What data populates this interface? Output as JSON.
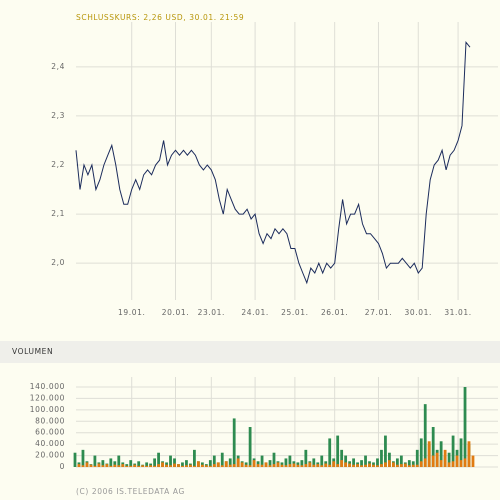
{
  "chart_data": [
    {
      "type": "line",
      "title": "SCHLUSSKURS: 2,26 USD, 30.01. 21:59",
      "color": "#1c2c5c",
      "values": [
        2.23,
        2.15,
        2.2,
        2.18,
        2.2,
        2.15,
        2.17,
        2.2,
        2.22,
        2.24,
        2.2,
        2.15,
        2.12,
        2.12,
        2.15,
        2.17,
        2.15,
        2.18,
        2.19,
        2.18,
        2.2,
        2.21,
        2.25,
        2.2,
        2.22,
        2.23,
        2.22,
        2.23,
        2.22,
        2.23,
        2.22,
        2.2,
        2.19,
        2.2,
        2.19,
        2.17,
        2.13,
        2.1,
        2.15,
        2.13,
        2.11,
        2.1,
        2.1,
        2.11,
        2.09,
        2.1,
        2.06,
        2.04,
        2.06,
        2.05,
        2.07,
        2.06,
        2.07,
        2.06,
        2.03,
        2.03,
        2.0,
        1.98,
        1.96,
        1.99,
        1.98,
        2.0,
        1.98,
        2.0,
        1.99,
        2.0,
        2.07,
        2.13,
        2.08,
        2.1,
        2.1,
        2.12,
        2.08,
        2.06,
        2.06,
        2.05,
        2.04,
        2.02,
        1.99,
        2.0,
        2.0,
        2.0,
        2.01,
        2.0,
        1.99,
        2.0,
        1.98,
        1.99,
        2.1,
        2.17,
        2.2,
        2.21,
        2.23,
        2.19,
        2.22,
        2.23,
        2.25,
        2.28,
        2.45,
        2.44
      ],
      "xlim": [
        0,
        99
      ],
      "xticks": [
        {
          "value": 14,
          "label": "19.01."
        },
        {
          "value": 25,
          "label": "20.01."
        },
        {
          "value": 34,
          "label": "23.01."
        },
        {
          "value": 45,
          "label": "24.01."
        },
        {
          "value": 55,
          "label": "25.01."
        },
        {
          "value": 65,
          "label": "26.01."
        },
        {
          "value": 76,
          "label": "27.01."
        },
        {
          "value": 86,
          "label": "30.01."
        },
        {
          "value": 96,
          "label": "31.01."
        }
      ],
      "ylim": [
        1.925,
        2.475
      ],
      "yticks": [
        {
          "value": 2.0,
          "label": "2,0"
        },
        {
          "value": 2.1,
          "label": "2,1"
        },
        {
          "value": 2.2,
          "label": "2,2"
        },
        {
          "value": 2.3,
          "label": "2,3"
        },
        {
          "value": 2.4,
          "label": "2,4"
        }
      ],
      "grid": true
    },
    {
      "type": "bar",
      "title": "VOLUMEN",
      "series": [
        {
          "color": "#2e8b50",
          "values": [
            25000,
            8000,
            30000,
            10000,
            5000,
            20000,
            8000,
            12000,
            6000,
            15000,
            10000,
            20000,
            8000,
            5000,
            12000,
            6000,
            10000,
            4000,
            8000,
            6000,
            15000,
            25000,
            10000,
            8000,
            20000,
            15000,
            5000,
            8000,
            12000,
            6000,
            30000,
            10000,
            8000,
            5000,
            12000,
            20000,
            8000,
            25000,
            10000,
            15000,
            85000,
            20000,
            10000,
            8000,
            70000,
            15000,
            10000,
            20000,
            8000,
            12000,
            25000,
            10000,
            8000,
            15000,
            20000,
            10000,
            8000,
            12000,
            30000,
            10000,
            15000,
            8000,
            20000,
            10000,
            50000,
            15000,
            55000,
            30000,
            20000,
            10000,
            15000,
            8000,
            12000,
            20000,
            10000,
            8000,
            15000,
            30000,
            55000,
            25000,
            10000,
            15000,
            20000,
            8000,
            12000,
            10000,
            30000,
            50000,
            110000,
            40000,
            70000,
            30000,
            45000,
            20000,
            25000,
            55000,
            30000,
            50000,
            140000,
            40000
          ]
        },
        {
          "color": "#e07b12",
          "values": [
            5000,
            3000,
            8000,
            4000,
            2000,
            6000,
            3000,
            5000,
            2000,
            4000,
            3000,
            5000,
            2000,
            2000,
            4000,
            2000,
            3000,
            2000,
            3000,
            2000,
            5000,
            8000,
            4000,
            3000,
            6000,
            5000,
            2000,
            3000,
            4000,
            2000,
            10000,
            4000,
            3000,
            2000,
            5000,
            8000,
            3000,
            10000,
            4000,
            5000,
            15000,
            8000,
            4000,
            3000,
            12000,
            5000,
            4000,
            8000,
            3000,
            5000,
            8000,
            4000,
            3000,
            5000,
            6000,
            4000,
            3000,
            5000,
            8000,
            4000,
            5000,
            3000,
            6000,
            4000,
            10000,
            5000,
            12000,
            8000,
            6000,
            4000,
            5000,
            3000,
            4000,
            6000,
            4000,
            3000,
            5000,
            8000,
            12000,
            8000,
            4000,
            5000,
            6000,
            3000,
            4000,
            4000,
            10000,
            15000,
            45000,
            20000,
            25000,
            12000,
            30000,
            8000,
            10000,
            20000,
            12000,
            15000,
            45000,
            20000
          ]
        }
      ],
      "ylim": [
        0,
        140000
      ],
      "yticks": [
        0,
        {
          "value": 20000,
          "label": "20.000"
        },
        {
          "value": 40000,
          "label": "40.000"
        },
        {
          "value": 60000,
          "label": "60.000"
        },
        {
          "value": 80000,
          "label": "80.000"
        },
        {
          "value": 100000,
          "label": "100.000"
        },
        {
          "value": 120000,
          "label": "120.000"
        },
        {
          "value": 140000,
          "label": "140.000"
        }
      ],
      "grid": true,
      "footer": "(C) 2006 IS.TELEDATA AG"
    }
  ]
}
